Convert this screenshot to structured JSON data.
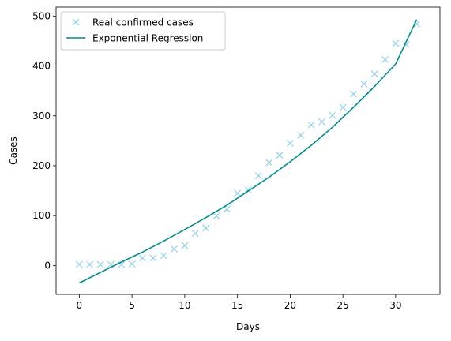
{
  "chart_data": {
    "type": "line",
    "xlabel": "Days",
    "ylabel": "Cases",
    "xlim": [
      -2.2,
      34.2
    ],
    "ylim": [
      -58,
      518
    ],
    "xticks": [
      0,
      5,
      10,
      15,
      20,
      25,
      30
    ],
    "yticks": [
      0,
      100,
      200,
      300,
      400,
      500
    ],
    "legend_position": "top-left",
    "grid": false,
    "series": [
      {
        "name": "Real confirmed cases",
        "kind": "scatter",
        "marker": "x",
        "color": "#87ceeb",
        "x": [
          0,
          1,
          2,
          3,
          4,
          5,
          6,
          7,
          8,
          9,
          10,
          11,
          12,
          13,
          14,
          15,
          16,
          17,
          18,
          19,
          20,
          21,
          22,
          23,
          24,
          25,
          26,
          27,
          28,
          29,
          30,
          31,
          32
        ],
        "y": [
          2,
          2,
          2,
          2,
          2,
          3,
          15,
          15,
          20,
          33,
          40,
          64,
          75,
          99,
          113,
          145,
          152,
          180,
          206,
          221,
          245,
          261,
          282,
          288,
          301,
          317,
          344,
          364,
          384,
          413,
          445,
          443,
          484
        ]
      },
      {
        "name": "Exponential Regression",
        "kind": "line",
        "color": "#008b8b",
        "x": [
          0,
          2,
          4,
          6,
          8,
          10,
          12,
          14,
          16,
          18,
          20,
          22,
          24,
          26,
          28,
          30,
          32
        ],
        "y": [
          -35,
          -14,
          7,
          27,
          49,
          72,
          96,
          121,
          149,
          177,
          208,
          241,
          277,
          317,
          359,
          404,
          493
        ]
      }
    ]
  }
}
